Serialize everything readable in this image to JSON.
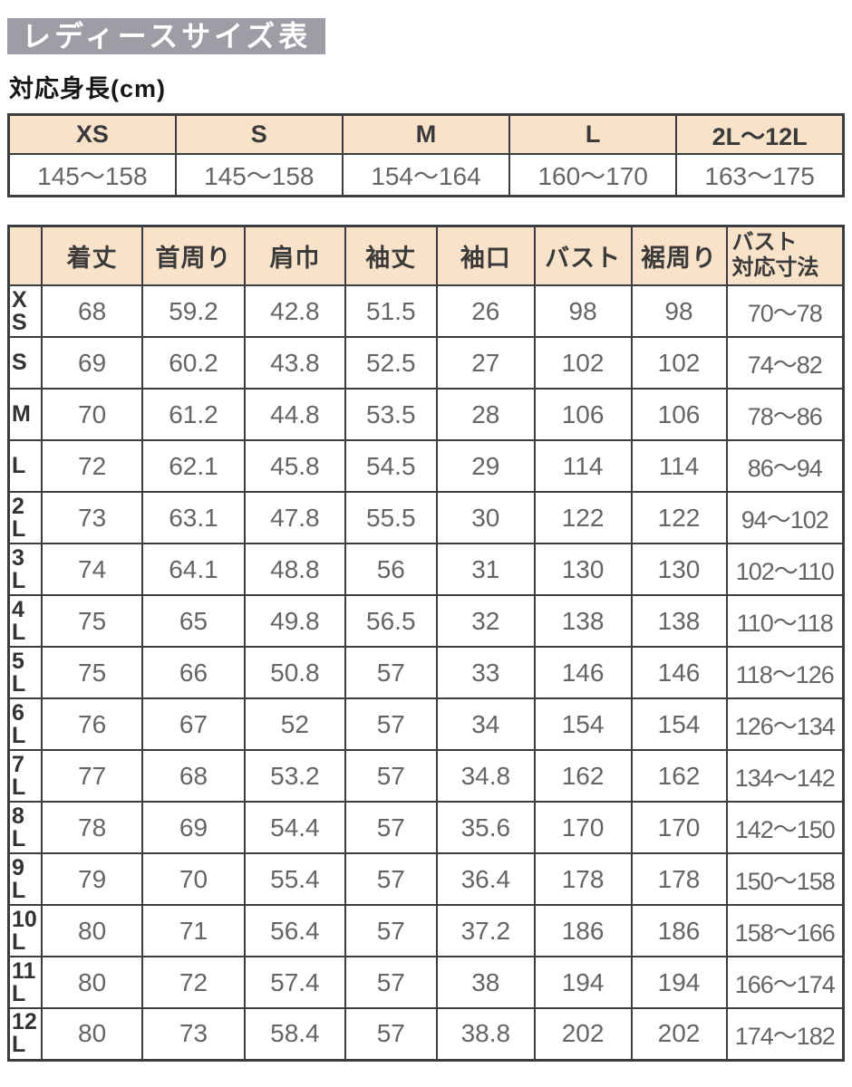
{
  "page": {
    "title": "レディースサイズ表",
    "subtitle": "対応身長(cm)"
  },
  "colors": {
    "title_bar_bg": "#9d9da5",
    "title_text": "#ffffff",
    "table_header_bg": "#f8e2c9",
    "table_border": "#3b3e40",
    "value_text": "#656565",
    "header_text": "#3a3a3a"
  },
  "height_table": {
    "columns": [
      "XS",
      "S",
      "M",
      "L",
      "2L〜12L"
    ],
    "values": [
      "145〜158",
      "145〜158",
      "154〜164",
      "160〜170",
      "163〜175"
    ]
  },
  "size_table": {
    "headers": [
      "着丈",
      "首周り",
      "肩巾",
      "袖丈",
      "袖口",
      "バスト",
      "裾周り"
    ],
    "last_header_lines": [
      "バスト",
      "対応寸法"
    ],
    "rows": [
      {
        "label_lines": [
          "X",
          "S"
        ],
        "values": [
          "68",
          "59.2",
          "42.8",
          "51.5",
          "26",
          "98",
          "98",
          "70〜78"
        ]
      },
      {
        "label_lines": [
          "S"
        ],
        "values": [
          "69",
          "60.2",
          "43.8",
          "52.5",
          "27",
          "102",
          "102",
          "74〜82"
        ]
      },
      {
        "label_lines": [
          "M"
        ],
        "values": [
          "70",
          "61.2",
          "44.8",
          "53.5",
          "28",
          "106",
          "106",
          "78〜86"
        ]
      },
      {
        "label_lines": [
          "L"
        ],
        "values": [
          "72",
          "62.1",
          "45.8",
          "54.5",
          "29",
          "114",
          "114",
          "86〜94"
        ]
      },
      {
        "label_lines": [
          "2",
          "L"
        ],
        "values": [
          "73",
          "63.1",
          "47.8",
          "55.5",
          "30",
          "122",
          "122",
          "94〜102"
        ]
      },
      {
        "label_lines": [
          "3",
          "L"
        ],
        "values": [
          "74",
          "64.1",
          "48.8",
          "56",
          "31",
          "130",
          "130",
          "102〜110"
        ]
      },
      {
        "label_lines": [
          "4",
          "L"
        ],
        "values": [
          "75",
          "65",
          "49.8",
          "56.5",
          "32",
          "138",
          "138",
          "110〜118"
        ]
      },
      {
        "label_lines": [
          "5",
          "L"
        ],
        "values": [
          "75",
          "66",
          "50.8",
          "57",
          "33",
          "146",
          "146",
          "118〜126"
        ]
      },
      {
        "label_lines": [
          "6",
          "L"
        ],
        "values": [
          "76",
          "67",
          "52",
          "57",
          "34",
          "154",
          "154",
          "126〜134"
        ]
      },
      {
        "label_lines": [
          "7",
          "L"
        ],
        "values": [
          "77",
          "68",
          "53.2",
          "57",
          "34.8",
          "162",
          "162",
          "134〜142"
        ]
      },
      {
        "label_lines": [
          "8",
          "L"
        ],
        "values": [
          "78",
          "69",
          "54.4",
          "57",
          "35.6",
          "170",
          "170",
          "142〜150"
        ]
      },
      {
        "label_lines": [
          "9",
          "L"
        ],
        "values": [
          "79",
          "70",
          "55.4",
          "57",
          "36.4",
          "178",
          "178",
          "150〜158"
        ]
      },
      {
        "label_lines": [
          "10",
          "L"
        ],
        "values": [
          "80",
          "71",
          "56.4",
          "57",
          "37.2",
          "186",
          "186",
          "158〜166"
        ]
      },
      {
        "label_lines": [
          "11",
          "L"
        ],
        "values": [
          "80",
          "72",
          "57.4",
          "57",
          "38",
          "194",
          "194",
          "166〜174"
        ]
      },
      {
        "label_lines": [
          "12",
          "L"
        ],
        "values": [
          "80",
          "73",
          "58.4",
          "57",
          "38.8",
          "202",
          "202",
          "174〜182"
        ]
      }
    ]
  }
}
